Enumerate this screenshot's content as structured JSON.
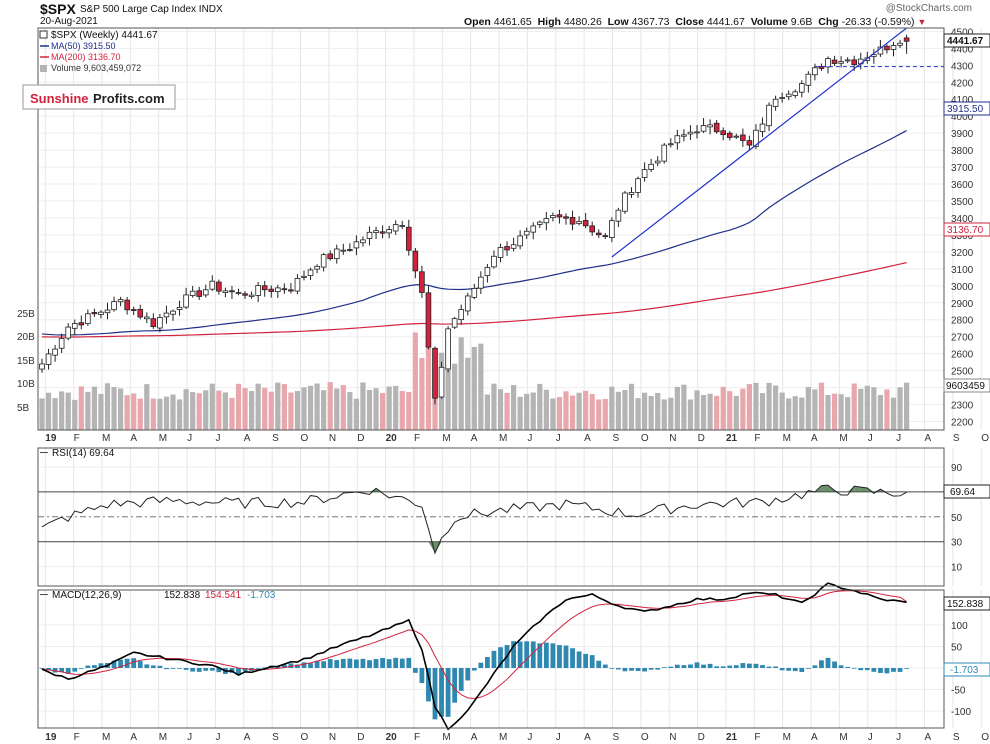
{
  "header": {
    "symbol": "$SPX",
    "name": "S&P 500 Large Cap Index",
    "exchange": "INDX",
    "date": "20-Aug-2021",
    "open_label": "Open",
    "open": "4461.65",
    "high_label": "High",
    "high": "4480.26",
    "low_label": "Low",
    "low": "4367.73",
    "close_label": "Close",
    "close": "4441.67",
    "volume_label": "Volume",
    "volume": "9.6B",
    "chg_label": "Chg",
    "chg": "-26.33 (-0.59%)",
    "watermark": "@StockCharts.com"
  },
  "logo": {
    "part1": "Sunshine",
    "part2": "Profits.com"
  },
  "legend": {
    "price": "$SPX (Weekly) 4441.67",
    "ma50": "MA(50) 3915.50",
    "ma200": "MA(200) 3136.70",
    "volume": "Volume 9,603,459,072"
  },
  "rsi": {
    "label": "RSI(14) 69.64",
    "value_label": "69.64"
  },
  "macd": {
    "label": "MACD(12,26,9)",
    "v1": "152.838",
    "v2": "154.541",
    "v3": "-1.703",
    "value_label": "152.838",
    "hist_label": "-1.703"
  },
  "colors": {
    "up": "#ffffff",
    "down": "#d2233c",
    "ma50": "#1f2f8a",
    "ma200": "#d2233c",
    "trendline": "#2233cc",
    "vol_up": "#b4b4b4",
    "vol_down": "#e8a7ad",
    "rsi_fill": "#3a6b3a",
    "macd": "#000000",
    "signal": "#d2233c",
    "hist": "#2e88b0"
  },
  "chart_data": [
    {
      "type": "candlestick",
      "title": "$SPX S&P 500 Large Cap Index INDX",
      "x_ticks": [
        "19",
        "F",
        "M",
        "A",
        "M",
        "J",
        "J",
        "A",
        "S",
        "O",
        "N",
        "D",
        "20",
        "F",
        "M",
        "A",
        "M",
        "J",
        "J",
        "A",
        "S",
        "O",
        "N",
        "D",
        "21",
        "F",
        "M",
        "A",
        "M",
        "J",
        "J",
        "A",
        "S",
        "O"
      ],
      "y_ticks": [
        4500,
        4400,
        4300,
        4200,
        4100,
        4000,
        3900,
        3800,
        3700,
        3600,
        3500,
        3400,
        3300,
        3200,
        3100,
        3000,
        2900,
        2800,
        2700,
        2600,
        2500,
        2400,
        2300,
        2200
      ],
      "y_range": [
        2150,
        4520
      ],
      "anchors": {
        "weeks": [
          0,
          4,
          8,
          12,
          17,
          21,
          26,
          30,
          34,
          38,
          42,
          47,
          50,
          55,
          58,
          60,
          62,
          65,
          69,
          74,
          78,
          82,
          86,
          88,
          91,
          96,
          100,
          104,
          108,
          112,
          116,
          120,
          124,
          128,
          131,
          132
        ],
        "close": [
          2540,
          2760,
          2830,
          2910,
          2780,
          2900,
          3000,
          2950,
          2980,
          2990,
          3140,
          3230,
          3300,
          3380,
          2950,
          2310,
          2750,
          2920,
          3190,
          3300,
          3400,
          3390,
          3280,
          3460,
          3640,
          3840,
          3930,
          3920,
          3820,
          4120,
          4190,
          4340,
          4330,
          4390,
          4460,
          4441.67
        ]
      },
      "last_candle": {
        "open": 4461.65,
        "high": 4480.26,
        "low": 4367.73,
        "close": 4441.67
      },
      "series": [
        {
          "name": "MA(50)",
          "value": 3915.5
        },
        {
          "name": "MA(200)",
          "value": 3136.7
        }
      ],
      "hline": 4292,
      "last_label": 4441.67
    },
    {
      "type": "bar",
      "title": "Volume",
      "y_ticks": [
        "25B",
        "20B",
        "15B",
        "10B",
        "5B"
      ],
      "last_value": 9603459072,
      "last_label": "9603459"
    },
    {
      "type": "line",
      "title": "RSI(14)",
      "y_ticks": [
        90,
        70,
        50,
        30,
        10
      ],
      "y_range": [
        0,
        100
      ],
      "anchors": {
        "weeks": [
          0,
          3,
          10,
          20,
          30,
          40,
          50,
          58,
          60,
          63,
          70,
          80,
          90,
          100,
          110,
          120,
          130,
          132
        ],
        "rsi": [
          40,
          48,
          60,
          63,
          61,
          62,
          72,
          60,
          23,
          50,
          55,
          60,
          52,
          60,
          62,
          72,
          69,
          69.64
        ]
      },
      "last_value": 69.64
    },
    {
      "type": "line",
      "title": "MACD(12,26,9)",
      "y_ticks": [
        100,
        50,
        0,
        -50,
        -100
      ],
      "y_range": [
        -125,
        225
      ],
      "anchors": {
        "weeks": [
          0,
          4,
          10,
          14,
          20,
          26,
          30,
          34,
          40,
          46,
          50,
          56,
          58,
          60,
          62,
          65,
          68,
          72,
          76,
          80,
          84,
          88,
          92,
          96,
          100,
          104,
          108,
          112,
          116,
          120,
          124,
          128,
          132
        ],
        "macd": [
          -5,
          -25,
          5,
          35,
          20,
          5,
          -15,
          0,
          20,
          55,
          75,
          110,
          45,
          -90,
          -140,
          -100,
          -35,
          50,
          110,
          160,
          170,
          145,
          130,
          145,
          160,
          160,
          175,
          170,
          150,
          195,
          180,
          160,
          152.838
        ]
      },
      "series": [
        {
          "name": "MACD",
          "value": 152.838
        },
        {
          "name": "Signal",
          "value": 154.541
        },
        {
          "name": "Histogram",
          "value": -1.703
        }
      ]
    }
  ]
}
